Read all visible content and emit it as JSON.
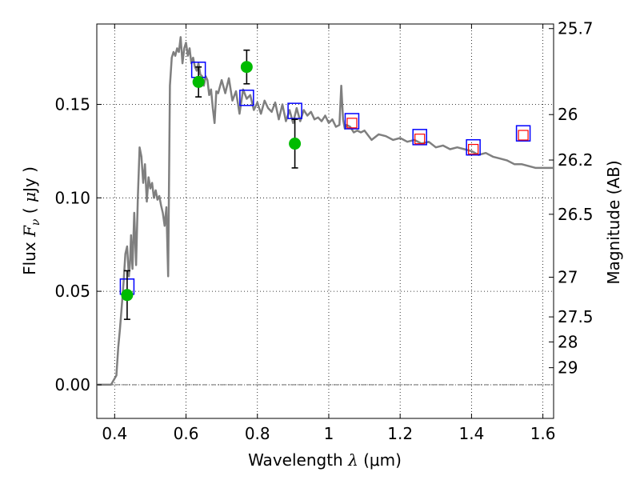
{
  "chart_data": {
    "type": "scatter",
    "title": "",
    "xlabel": "Wavelength  λ (μm)",
    "xlabel_parts": {
      "pre": "Wavelength  ",
      "sym": "λ",
      "post": " (μm)"
    },
    "ylabel": "Flux  Fν  ( μJy )",
    "ylabel_parts": {
      "pre": "Flux  ",
      "sym": "F",
      "sub": "ν",
      "mid": "  ( ",
      "mu": "μ",
      "post": "Jy )"
    },
    "y2label": "Magnitude (AB)",
    "xlim": [
      0.35,
      1.63
    ],
    "ylim": [
      -0.018,
      0.193
    ],
    "grid": true,
    "x_ticks": [
      0.4,
      0.6,
      0.8,
      1.0,
      1.2,
      1.4,
      1.6
    ],
    "x_tick_labels": [
      "0.4",
      "0.6",
      "0.8",
      "1",
      "1.2",
      "1.4",
      "1.6"
    ],
    "y_ticks": [
      0.0,
      0.05,
      0.1,
      0.15
    ],
    "y_tick_labels": [
      "0.00",
      "0.05",
      "0.10",
      "0.15"
    ],
    "y2_ticks": [
      {
        "label": "25.7",
        "mag": 25.7
      },
      {
        "label": "26",
        "mag": 26.0
      },
      {
        "label": "26.2",
        "mag": 26.2
      },
      {
        "label": "26.5",
        "mag": 26.5
      },
      {
        "label": "27",
        "mag": 27.0
      },
      {
        "label": "27.5",
        "mag": 27.5
      },
      {
        "label": "28",
        "mag": 28.0
      },
      {
        "label": "29",
        "mag": 29.0
      }
    ],
    "zero_line": 0.0,
    "colors": {
      "model": "#7f7f7f",
      "observed": "#00bb00",
      "model_band": "#0000ff",
      "observed_band": "#ff0000",
      "errorbar": "#000000",
      "grid": "#000000"
    },
    "series": [
      {
        "name": "model spectrum",
        "kind": "line",
        "x": [
          0.35,
          0.39,
          0.405,
          0.41,
          0.415,
          0.42,
          0.425,
          0.43,
          0.435,
          0.44,
          0.443,
          0.446,
          0.45,
          0.455,
          0.46,
          0.465,
          0.47,
          0.475,
          0.48,
          0.485,
          0.49,
          0.495,
          0.5,
          0.505,
          0.51,
          0.515,
          0.52,
          0.525,
          0.53,
          0.535,
          0.54,
          0.545,
          0.55,
          0.555,
          0.56,
          0.565,
          0.57,
          0.575,
          0.58,
          0.585,
          0.59,
          0.595,
          0.6,
          0.605,
          0.61,
          0.615,
          0.62,
          0.625,
          0.63,
          0.635,
          0.64,
          0.645,
          0.65,
          0.655,
          0.66,
          0.665,
          0.67,
          0.675,
          0.68,
          0.685,
          0.69,
          0.7,
          0.71,
          0.72,
          0.73,
          0.74,
          0.75,
          0.76,
          0.77,
          0.78,
          0.79,
          0.8,
          0.81,
          0.82,
          0.83,
          0.84,
          0.85,
          0.86,
          0.87,
          0.88,
          0.89,
          0.9,
          0.91,
          0.92,
          0.93,
          0.94,
          0.95,
          0.96,
          0.97,
          0.98,
          0.99,
          1.0,
          1.01,
          1.02,
          1.03,
          1.035,
          1.04,
          1.045,
          1.05,
          1.06,
          1.07,
          1.08,
          1.09,
          1.1,
          1.12,
          1.14,
          1.16,
          1.18,
          1.2,
          1.22,
          1.24,
          1.26,
          1.28,
          1.3,
          1.32,
          1.34,
          1.36,
          1.38,
          1.4,
          1.42,
          1.44,
          1.46,
          1.48,
          1.5,
          1.52,
          1.54,
          1.56,
          1.58,
          1.6,
          1.63
        ],
        "y": [
          0.0,
          0.0,
          0.005,
          0.02,
          0.03,
          0.042,
          0.055,
          0.07,
          0.074,
          0.058,
          0.065,
          0.08,
          0.062,
          0.092,
          0.064,
          0.1,
          0.127,
          0.122,
          0.108,
          0.118,
          0.098,
          0.111,
          0.105,
          0.108,
          0.1,
          0.104,
          0.099,
          0.101,
          0.096,
          0.092,
          0.085,
          0.095,
          0.058,
          0.16,
          0.175,
          0.178,
          0.176,
          0.18,
          0.178,
          0.186,
          0.172,
          0.18,
          0.183,
          0.176,
          0.18,
          0.172,
          0.175,
          0.17,
          0.168,
          0.172,
          0.166,
          0.165,
          0.16,
          0.165,
          0.163,
          0.155,
          0.158,
          0.148,
          0.14,
          0.157,
          0.156,
          0.163,
          0.156,
          0.164,
          0.152,
          0.157,
          0.145,
          0.158,
          0.153,
          0.155,
          0.147,
          0.151,
          0.145,
          0.152,
          0.148,
          0.146,
          0.151,
          0.142,
          0.15,
          0.141,
          0.147,
          0.14,
          0.148,
          0.141,
          0.147,
          0.144,
          0.146,
          0.142,
          0.143,
          0.141,
          0.144,
          0.14,
          0.142,
          0.138,
          0.139,
          0.16,
          0.142,
          0.137,
          0.139,
          0.138,
          0.135,
          0.136,
          0.135,
          0.136,
          0.131,
          0.134,
          0.133,
          0.131,
          0.132,
          0.13,
          0.131,
          0.129,
          0.13,
          0.127,
          0.128,
          0.126,
          0.127,
          0.126,
          0.125,
          0.123,
          0.124,
          0.122,
          0.121,
          0.12,
          0.118,
          0.118,
          0.117,
          0.116,
          0.116,
          0.116
        ]
      },
      {
        "name": "model band flux",
        "kind": "open-square",
        "x": [
          0.435,
          0.635,
          0.77,
          0.905,
          1.065,
          1.255,
          1.405,
          1.545
        ],
        "y": [
          0.0525,
          0.1685,
          0.1535,
          0.1465,
          0.141,
          0.1325,
          0.127,
          0.1345
        ]
      },
      {
        "name": "observed band flux",
        "kind": "small-square",
        "x": [
          1.065,
          1.255,
          1.405,
          1.545
        ],
        "y": [
          0.14,
          0.1315,
          0.126,
          0.1335
        ]
      },
      {
        "name": "observed photometry",
        "kind": "point",
        "x": [
          0.435,
          0.635,
          0.77,
          0.905
        ],
        "y": [
          0.048,
          0.162,
          0.17,
          0.129
        ],
        "err": [
          0.013,
          0.008,
          0.009,
          0.013
        ]
      }
    ]
  }
}
